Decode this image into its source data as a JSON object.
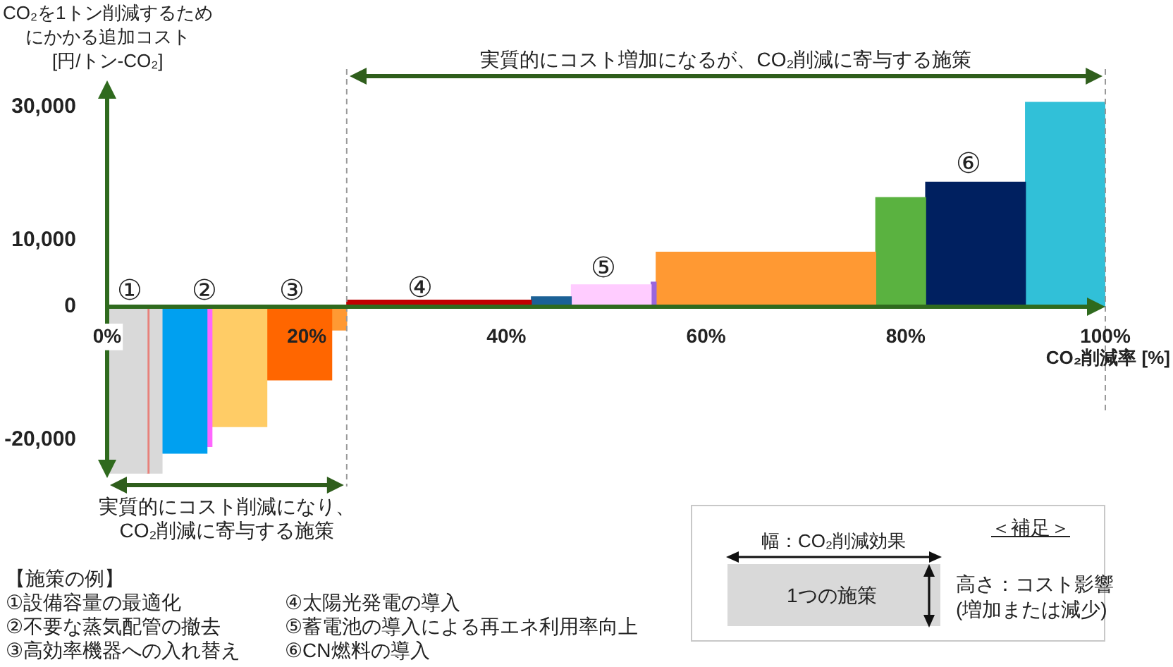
{
  "chart_data": {
    "type": "histogram",
    "bins": [
      0,
      4,
      4.2,
      5.5,
      10,
      10.5,
      16,
      22.5,
      24,
      42.5,
      46.5,
      54.5,
      55,
      77,
      82,
      92,
      100
    ],
    "values": [
      -25000,
      -25000,
      -25000,
      -22000,
      -21000,
      -18000,
      -11000,
      -3500,
      1000,
      1500,
      3300,
      3700,
      8200,
      16400,
      18700,
      30700
    ],
    "colors": [
      "#d9d9d9",
      "#e8807a",
      "#d9d9d9",
      "#00a0f0",
      "#ff66ff",
      "#ffcc66",
      "#ff6600",
      "#ff9933",
      "#c00000",
      "#1b6196",
      "#ffccff",
      "#9966dd",
      "#ff9933",
      "#5ab240",
      "#002060",
      "#31c0d8"
    ],
    "xlim": [
      0,
      100
    ],
    "xticks": [
      {
        "value": 0,
        "label": "0%"
      },
      {
        "value": 20,
        "label": "20%"
      },
      {
        "value": 40,
        "label": "40%"
      },
      {
        "value": 60,
        "label": "60%"
      },
      {
        "value": 80,
        "label": "80%"
      },
      {
        "value": 100,
        "label": "100%"
      }
    ],
    "ylim": [
      -27000,
      34000
    ],
    "yticks": [
      {
        "value": -20000,
        "label": "-20,000"
      },
      0,
      {
        "value": 10000,
        "label": "10,000"
      },
      {
        "value": 30000,
        "label": "30,000"
      }
    ],
    "xlabel": "CO₂削減率 [%]",
    "ylabel": "CO₂を1トン削減するためにかかる追加コスト [円/トン-CO₂]",
    "ref_lines": [
      {
        "axis": "x",
        "value": 24,
        "color": "#999999",
        "line_style": "dashed"
      },
      {
        "axis": "x",
        "value": 100,
        "color": "#999999",
        "line_style": "dashed"
      }
    ],
    "annotations": [
      "実質的にコスト増加になるが、CO₂削減に寄与する施策",
      "実質的にコスト削減になり、\nCO₂削減に寄与する施策",
      "①",
      "②",
      "③",
      "④",
      "⑤",
      "⑥",
      "【施策の例】",
      "①設備容量の最適化",
      "②不要な蒸気配管の撤去",
      "③高効率機器への入れ替え",
      "④太陽光発電の導入",
      "⑤蓄電池の導入による再エネ利用率向上",
      "⑥CN燃料の導入",
      "＜補足＞",
      "幅：CO₂削減効果",
      "1つの施策",
      "高さ：コスト影響\n(増加または減少)"
    ]
  }
}
